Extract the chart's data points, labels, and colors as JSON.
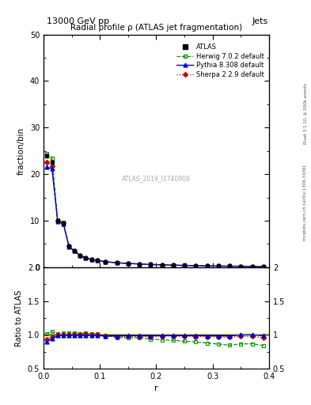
{
  "title_top": "13000 GeV pp",
  "title_right": "Jets",
  "main_title": "Radial profile ρ (ATLAS jet fragmentation)",
  "watermark": "ATLAS_2019_I1740909",
  "right_label_top": "Rivet 3.1.10, ≥ 500k events",
  "right_label_bot": "mcplots.cern.ch [arXiv:1306.3436]",
  "xlabel": "r",
  "ylabel_main": "fraction/bin",
  "ylabel_ratio": "Ratio to ATLAS",
  "r_values": [
    0.005,
    0.015,
    0.025,
    0.035,
    0.045,
    0.055,
    0.065,
    0.075,
    0.085,
    0.095,
    0.11,
    0.13,
    0.15,
    0.17,
    0.19,
    0.21,
    0.23,
    0.25,
    0.27,
    0.29,
    0.31,
    0.33,
    0.35,
    0.37,
    0.39
  ],
  "atlas_values": [
    24.0,
    22.5,
    10.0,
    9.5,
    4.5,
    3.5,
    2.5,
    2.0,
    1.7,
    1.5,
    1.2,
    1.0,
    0.85,
    0.72,
    0.62,
    0.54,
    0.48,
    0.42,
    0.37,
    0.33,
    0.29,
    0.26,
    0.22,
    0.19,
    0.17
  ],
  "atlas_err": [
    0.5,
    0.5,
    0.3,
    0.3,
    0.15,
    0.12,
    0.08,
    0.07,
    0.06,
    0.05,
    0.04,
    0.03,
    0.03,
    0.025,
    0.02,
    0.018,
    0.016,
    0.014,
    0.012,
    0.011,
    0.01,
    0.009,
    0.008,
    0.007,
    0.006
  ],
  "herwig_values": [
    24.5,
    23.5,
    10.2,
    9.7,
    4.6,
    3.6,
    2.55,
    2.05,
    1.72,
    1.52,
    1.19,
    0.96,
    0.81,
    0.69,
    0.58,
    0.5,
    0.44,
    0.38,
    0.33,
    0.29,
    0.25,
    0.22,
    0.19,
    0.165,
    0.143
  ],
  "pythia_values": [
    21.5,
    21.2,
    9.9,
    9.4,
    4.48,
    3.48,
    2.48,
    1.98,
    1.68,
    1.48,
    1.18,
    0.98,
    0.84,
    0.71,
    0.61,
    0.535,
    0.475,
    0.415,
    0.365,
    0.325,
    0.285,
    0.255,
    0.22,
    0.19,
    0.168
  ],
  "sherpa_values": [
    22.5,
    21.8,
    10.0,
    9.5,
    4.5,
    3.52,
    2.52,
    2.02,
    1.7,
    1.5,
    1.18,
    0.97,
    0.83,
    0.7,
    0.6,
    0.53,
    0.47,
    0.41,
    0.36,
    0.32,
    0.28,
    0.25,
    0.215,
    0.185,
    0.163
  ],
  "herwig_ratio": [
    1.02,
    1.044,
    1.02,
    1.021,
    1.022,
    1.029,
    1.02,
    1.025,
    1.012,
    1.013,
    0.992,
    0.96,
    0.953,
    0.958,
    0.935,
    0.926,
    0.917,
    0.905,
    0.892,
    0.879,
    0.862,
    0.846,
    0.864,
    0.868,
    0.841
  ],
  "pythia_ratio": [
    0.896,
    0.942,
    0.99,
    0.989,
    0.995,
    0.994,
    0.992,
    0.99,
    0.988,
    0.987,
    0.983,
    0.98,
    0.988,
    0.986,
    0.984,
    0.99,
    0.99,
    0.988,
    0.987,
    0.985,
    0.983,
    0.981,
    1.0,
    1.0,
    0.988
  ],
  "sherpa_ratio": [
    0.938,
    0.969,
    1.0,
    1.0,
    1.0,
    1.006,
    1.008,
    1.01,
    1.0,
    1.0,
    0.983,
    0.97,
    0.976,
    0.972,
    0.968,
    0.981,
    0.979,
    0.976,
    0.973,
    0.97,
    0.966,
    0.962,
    0.977,
    0.974,
    0.959
  ],
  "ylim_main": [
    0,
    50
  ],
  "ylim_ratio": [
    0.5,
    2.0
  ],
  "xlim": [
    0,
    0.4
  ],
  "atlas_color": "#000000",
  "herwig_color": "#009900",
  "pythia_color": "#0000cc",
  "sherpa_color": "#cc0000",
  "band_color": "#ffffaa",
  "band_edge_color": "#cccc00"
}
